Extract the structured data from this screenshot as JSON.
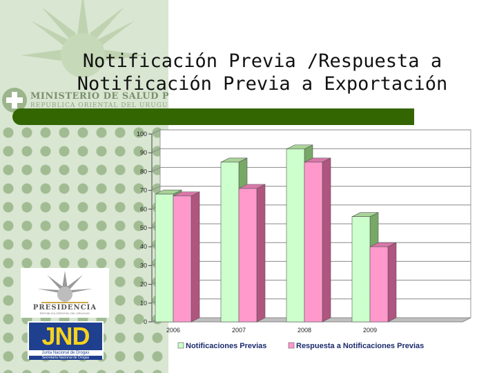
{
  "slide": {
    "title_line1": "Notificación Previa /Respuesta a",
    "title_line2": "Notificación Previa a Exportación"
  },
  "branding": {
    "ministry": "MINISTERIO DE SALUD PUBLICA",
    "ministry_sub": "REPUBLICA ORIENTAL DEL URUGUAY",
    "presidencia": "PRESIDENCIA",
    "presidencia_sub": "REPUBLICA ORIENTAL DEL URUGUAY",
    "jnd": "JND",
    "jnd_sub1": "Junta Nacional de Drogas",
    "jnd_sub2": "Secretaría Nacional de Drogas"
  },
  "colors": {
    "accent_bar": "#336600",
    "series1_fill": "#ccffcc",
    "series2_fill": "#ff99cc"
  },
  "chart_data": {
    "type": "bar",
    "categories": [
      "2006",
      "2007",
      "2008",
      "2009"
    ],
    "series": [
      {
        "name": "Notificaciones Previas",
        "values": [
          68,
          85,
          92,
          56
        ]
      },
      {
        "name": "Respuesta a Notificaciones Previas",
        "values": [
          67,
          71,
          85,
          40
        ]
      }
    ],
    "yticks": [
      "0",
      "10",
      "20",
      "30",
      "40",
      "50",
      "60",
      "70",
      "80",
      "90",
      "100"
    ],
    "ylim": [
      0,
      100
    ],
    "grid": true,
    "legend_position": "bottom",
    "title": "",
    "xlabel": "",
    "ylabel": ""
  }
}
